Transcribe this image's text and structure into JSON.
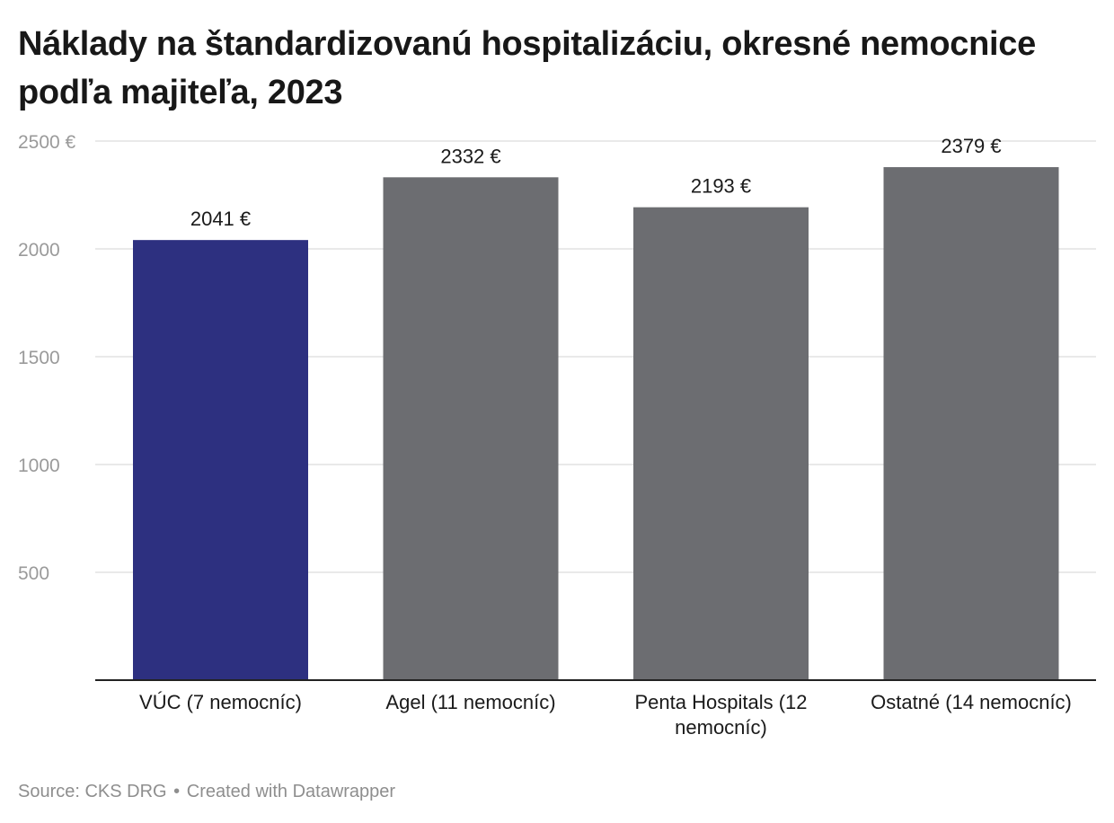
{
  "title": "Náklady na štandardizovanú hospitalizáciu, okresné nemocnice podľa majiteľa, 2023",
  "footer": {
    "source": "Source: CKS DRG",
    "separator": "•",
    "credit": "Created with Datawrapper"
  },
  "colors": {
    "highlight": "#2d3080",
    "default": "#6c6d71",
    "grid": "#e2e2e2",
    "axis_text": "#9a9a9a",
    "label_text": "#1a1a1a",
    "baseline": "#222222"
  },
  "chart_data": {
    "type": "bar",
    "categories": [
      "VÚC (7 nemocníc)",
      "Agel (11 nemocníc)",
      "Penta Hospitals (12 nemocníc)",
      "Ostatné (14 nemocníc)"
    ],
    "category_lines": [
      [
        "VÚC (7 nemocníc)"
      ],
      [
        "Agel (11 nemocníc)"
      ],
      [
        "Penta Hospitals (12",
        "nemocníc)"
      ],
      [
        "Ostatné (14 nemocníc)"
      ]
    ],
    "values": [
      2041,
      2332,
      2193,
      2379
    ],
    "value_labels": [
      "2041 €",
      "2332 €",
      "2193 €",
      "2379 €"
    ],
    "bar_colors": [
      "#2d3080",
      "#6c6d71",
      "#6c6d71",
      "#6c6d71"
    ],
    "yticks": [
      500,
      1000,
      1500,
      2000,
      2500
    ],
    "ytick_labels": [
      "500",
      "1000",
      "1500",
      "2000",
      "2500 €"
    ],
    "ylim": [
      0,
      2500
    ],
    "grid": true
  }
}
